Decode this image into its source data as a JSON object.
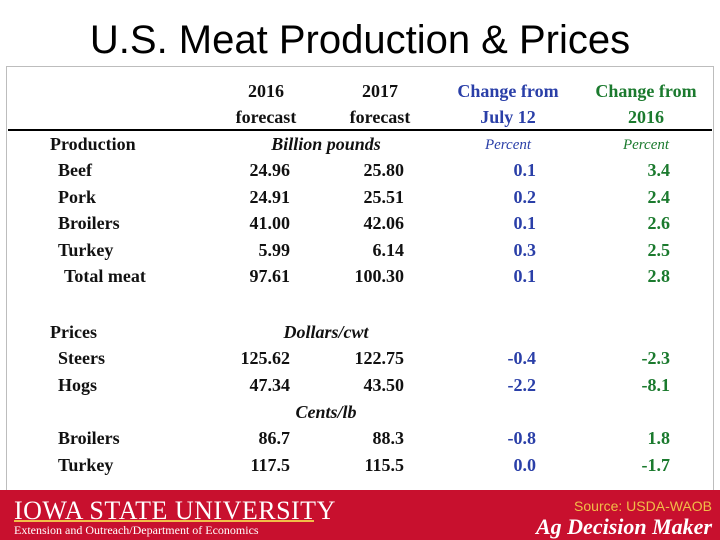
{
  "title": "U.S. Meat Production & Prices",
  "headers": {
    "c2016": [
      "2016",
      "forecast"
    ],
    "c2017": [
      "2017",
      "forecast"
    ],
    "july": [
      "Change from",
      "July 12"
    ],
    "c2016chg": [
      "Change from",
      "2016"
    ]
  },
  "production": {
    "label": "Production",
    "unit": "Billion pounds",
    "pct1": "Percent",
    "pct2": "Percent",
    "rows": [
      {
        "name": "Beef",
        "v2016": "24.96",
        "v2017": "25.80",
        "chg_july": "0.1",
        "chg_2016": "3.4"
      },
      {
        "name": "Pork",
        "v2016": "24.91",
        "v2017": "25.51",
        "chg_july": "0.2",
        "chg_2016": "2.4"
      },
      {
        "name": "Broilers",
        "v2016": "41.00",
        "v2017": "42.06",
        "chg_july": "0.1",
        "chg_2016": "2.6"
      },
      {
        "name": "Turkey",
        "v2016": "5.99",
        "v2017": "6.14",
        "chg_july": "0.3",
        "chg_2016": "2.5"
      },
      {
        "name": "Total meat",
        "v2016": "97.61",
        "v2017": "100.30",
        "chg_july": "0.1",
        "chg_2016": "2.8"
      }
    ]
  },
  "prices": {
    "label": "Prices",
    "unit_cwt": "Dollars/cwt",
    "unit_lb": "Cents/lb",
    "cwt_rows": [
      {
        "name": "Steers",
        "v2016": "125.62",
        "v2017": "122.75",
        "chg_july": "-0.4",
        "chg_2016": "-2.3"
      },
      {
        "name": "Hogs",
        "v2016": "47.34",
        "v2017": "43.50",
        "chg_july": "-2.2",
        "chg_2016": "-8.1"
      }
    ],
    "lb_rows": [
      {
        "name": "Broilers",
        "v2016": "86.7",
        "v2017": "88.3",
        "chg_july": "-0.8",
        "chg_2016": "1.8"
      },
      {
        "name": "Turkey",
        "v2016": "117.5",
        "v2017": "115.5",
        "chg_july": "0.0",
        "chg_2016": "-1.7"
      }
    ]
  },
  "footer": {
    "university": "IOWA STATE UNIVERSITY",
    "extension": "Extension and Outreach/Department of Economics",
    "source": "Source: USDA-WAOB",
    "brand": "Ag Decision Maker"
  },
  "colors": {
    "footer_bg": "#c8102e",
    "gold": "#f1be48",
    "blue_header": "#2a3fa8",
    "green_header": "#1b7a2e"
  }
}
